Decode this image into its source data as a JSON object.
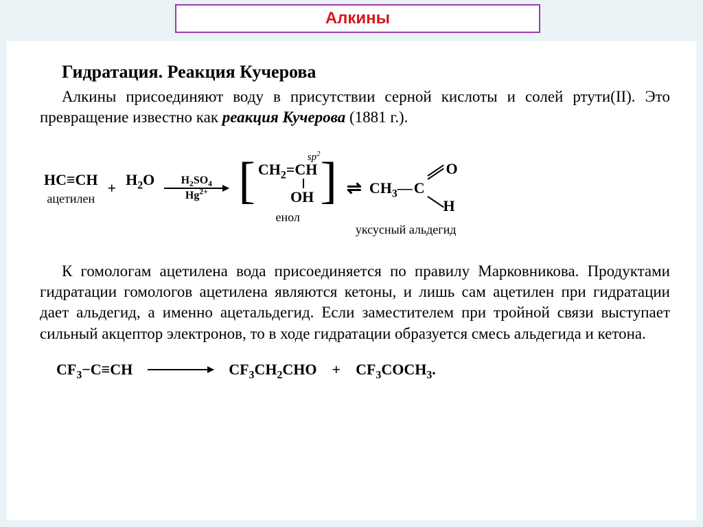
{
  "header": {
    "title": "Алкины"
  },
  "section": {
    "heading": "Гидратация. Реакция Кучерова",
    "para1_a": "Алкины присоединяют воду в присутствии серной кислоты и солей ртути(II). Это превращение известно как ",
    "para1_b": "реакция Кучерова",
    "para1_c": " (1881 г.).",
    "para2": "К гомологам ацетилена вода присоединяется по правилу Марковникова. Продуктами гидратации гомологов ацетилена являются кетоны, и лишь сам ацетилен при гидратации дает альдегид, а именно ацетальдегид. Если заместителем при тройной связи выступает сильный акцептор электронов, то в ходе гидратации образуется смесь альдегида и кетона."
  },
  "rxn1": {
    "reagent1": "HC≡CH",
    "reagent1_label": "ацетилен",
    "plus": "+",
    "reagent2_a": "H",
    "reagent2_b": "2",
    "reagent2_c": "O",
    "arrow_top_a": "H",
    "arrow_top_b": "2",
    "arrow_top_c": "SO",
    "arrow_top_d": "4",
    "arrow_bot_a": "Hg",
    "arrow_bot_b": "2+",
    "enol_sp": "sp",
    "enol_sp_sup": "2",
    "enol_main_a": "CH",
    "enol_main_b": "2",
    "enol_main_c": "=CH",
    "enol_oh": "OH",
    "enol_label": "енол",
    "product_a": "CH",
    "product_b": "3",
    "product_dash": "—",
    "product_c": "C",
    "product_o": "O",
    "product_h": "H",
    "product_label": "уксусный альдегид"
  },
  "rxn2": {
    "r1_a": "CF",
    "r1_b": "3",
    "r1_mid": "−C≡CH",
    "p1_a": "CF",
    "p1_b": "3",
    "p1_c": "CH",
    "p1_d": "2",
    "p1_e": "CHO",
    "plus": "+",
    "p2_a": "CF",
    "p2_b": "3",
    "p2_c": "COCH",
    "p2_d": "3",
    "p2_e": "."
  }
}
